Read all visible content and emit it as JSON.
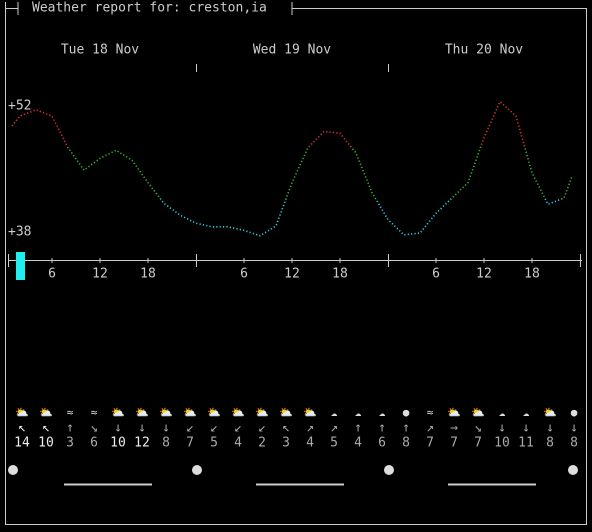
{
  "chart_data": {
    "type": "line",
    "title": "Weather report for: creston,ia",
    "days": [
      "Tue 18 Nov",
      "Wed 19 Nov",
      "Thu 20 Nov"
    ],
    "x": [
      1,
      2,
      4,
      6,
      8,
      10,
      12,
      14,
      16,
      18,
      20,
      22,
      24,
      26,
      28,
      30,
      32,
      34,
      36,
      38,
      40,
      42,
      44,
      46,
      48,
      50,
      52,
      54,
      56,
      58,
      60,
      62,
      64,
      66,
      68,
      70,
      71
    ],
    "values": [
      50,
      51.1,
      51.8,
      51.1,
      47.6,
      45.1,
      46.4,
      47.3,
      46.2,
      43.7,
      41.4,
      40.1,
      39.2,
      38.8,
      38.8,
      38.4,
      37.8,
      38.9,
      43.7,
      47.6,
      49.4,
      49.2,
      47,
      42.6,
      39.6,
      37.9,
      38.1,
      40.3,
      42,
      43.7,
      48.7,
      52.7,
      51.1,
      44.8,
      41.3,
      42,
      44.4
    ],
    "xlim": [
      0,
      72
    ],
    "ylim": [
      36,
      54
    ],
    "yticks": [
      {
        "value": 52,
        "label": "+52"
      },
      {
        "value": 38,
        "label": "+38"
      }
    ],
    "xticks": [
      6,
      12,
      18,
      {
        "value": 30,
        "label": "6"
      },
      {
        "value": 36,
        "label": "12"
      },
      {
        "value": 42,
        "label": "18"
      },
      {
        "value": 54,
        "label": "6"
      },
      {
        "value": 60,
        "label": "12"
      },
      {
        "value": 66,
        "label": "18"
      }
    ],
    "icons": [
      "⛅",
      "⛅",
      "≈",
      "≈",
      "⛅",
      "⛅",
      "⛅",
      "⛅",
      "⛅",
      "⛅",
      "⛅",
      "⛅",
      "⛅",
      "☁",
      "☁",
      "☁",
      "●",
      "≈",
      "⛅",
      "⛅",
      "☁",
      "☁",
      "⛅",
      "●"
    ],
    "wind_dir": [
      "↖",
      "↖",
      "↑",
      "↘",
      "↓",
      "↓",
      "↓",
      "↙",
      "↙",
      "↙",
      "↙",
      "↖",
      "↗",
      "↗",
      "↑",
      "↑",
      "↑",
      "↗",
      "→",
      "↘",
      "↓",
      "↓",
      "↓",
      "↓"
    ],
    "wind_speed": [
      14,
      10,
      3,
      6,
      10,
      12,
      8,
      7,
      5,
      4,
      2,
      3,
      4,
      5,
      4,
      6,
      8,
      7,
      7,
      7,
      10,
      11,
      8,
      8
    ]
  }
}
